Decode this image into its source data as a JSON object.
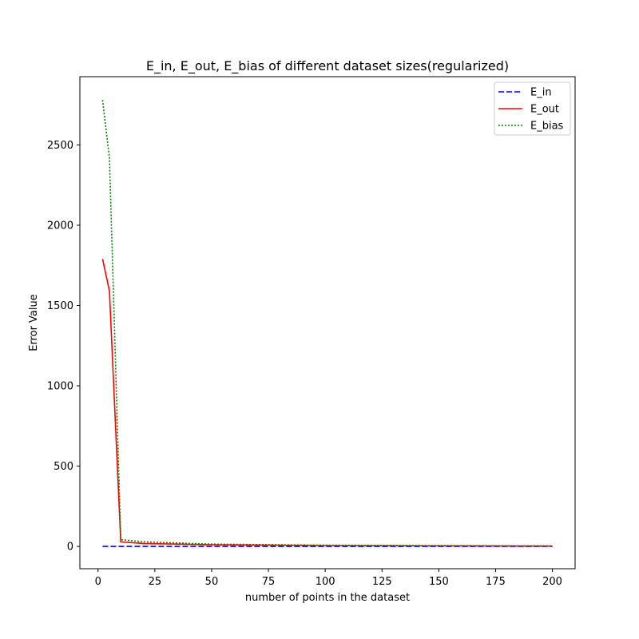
{
  "chart_data": {
    "type": "line",
    "title": "E_in, E_out, E_bias of different dataset sizes(regularized)",
    "xlabel": "number of points in the dataset",
    "ylabel": "Error Value",
    "xlim": [
      -8,
      210
    ],
    "ylim": [
      -139,
      2925
    ],
    "x_ticks": [
      0,
      25,
      50,
      75,
      100,
      125,
      150,
      175,
      200
    ],
    "y_ticks": [
      0,
      500,
      1000,
      1500,
      2000,
      2500
    ],
    "x_tick_labels": [
      "0",
      "25",
      "50",
      "75",
      "100",
      "125",
      "150",
      "175",
      "200"
    ],
    "y_tick_labels": [
      "0",
      "500",
      "1000",
      "1500",
      "2000",
      "2500"
    ],
    "grid": false,
    "legend_position": "top-right",
    "series": [
      {
        "name": "E_in",
        "color": "#0000ff",
        "style": "dashed",
        "x": [
          2,
          5,
          10,
          20,
          50,
          100,
          200
        ],
        "y": [
          0,
          0,
          0,
          0,
          0,
          0,
          0
        ]
      },
      {
        "name": "E_out",
        "color": "#ff0000",
        "style": "solid",
        "x": [
          2,
          5,
          10,
          20,
          50,
          100,
          200
        ],
        "y": [
          1790,
          1590,
          28,
          18,
          10,
          5,
          2
        ]
      },
      {
        "name": "E_bias",
        "color": "#008000",
        "style": "dotted",
        "x": [
          2,
          5,
          10,
          20,
          50,
          100,
          200
        ],
        "y": [
          2780,
          2420,
          42,
          28,
          14,
          7,
          3
        ]
      }
    ]
  }
}
